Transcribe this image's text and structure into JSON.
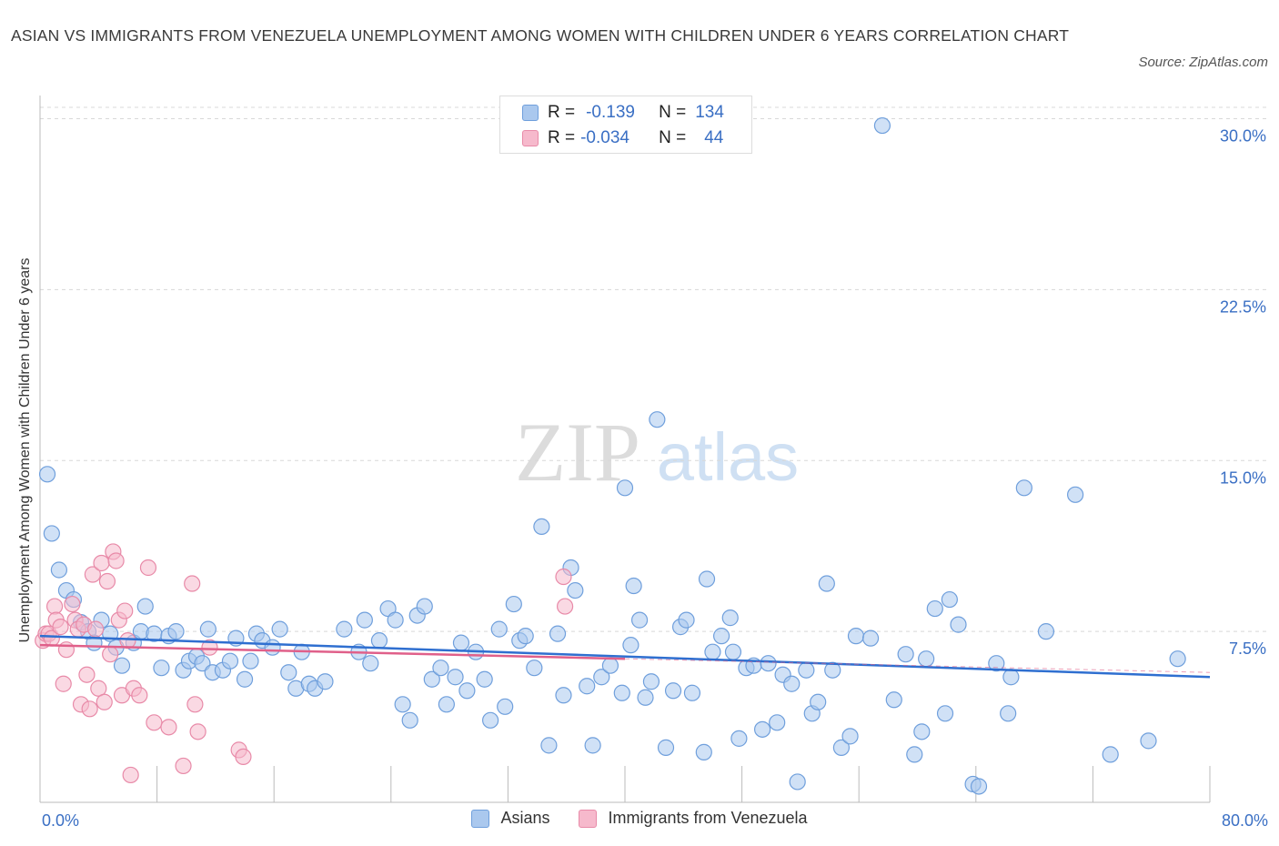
{
  "header": {
    "title": "ASIAN VS IMMIGRANTS FROM VENEZUELA UNEMPLOYMENT AMONG WOMEN WITH CHILDREN UNDER 6 YEARS CORRELATION CHART",
    "source": "Source: ZipAtlas.com"
  },
  "legend": {
    "asians": {
      "r_label": "R =",
      "r_value": "-0.139",
      "n_label": "N =",
      "n_value": "134"
    },
    "venezuela": {
      "r_label": "R =",
      "r_value": "-0.034",
      "n_label": "N =",
      "n_value": "44"
    },
    "bottom_asians": "Asians",
    "bottom_venezuela": "Immigrants from Venezuela"
  },
  "colors": {
    "asians_fill": "#aac8ee",
    "asians_stroke": "#6f9fdc",
    "asians_line": "#2f6fd0",
    "venezuela_fill": "#f6b9cc",
    "venezuela_stroke": "#e88aa8",
    "venezuela_line": "#e0608a",
    "tick_text": "#3a6fc4",
    "grid": "#d8d8d8"
  },
  "watermark": {
    "zip": "ZIP",
    "atlas": "atlas"
  },
  "chart_data": {
    "type": "scatter",
    "title": "ASIAN VS IMMIGRANTS FROM VENEZUELA UNEMPLOYMENT AMONG WOMEN WITH CHILDREN UNDER 6 YEARS CORRELATION CHART",
    "xlabel": "",
    "ylabel": "Unemployment Among Women with Children Under 6 years",
    "xlim": [
      0,
      80
    ],
    "ylim": [
      0,
      30.5
    ],
    "x_tick_labels": [
      "0.0%",
      "80.0%"
    ],
    "y_ticks": [
      7.5,
      15.0,
      22.5,
      30.0
    ],
    "y_tick_labels": [
      "7.5%",
      "15.0%",
      "22.5%",
      "30.0%"
    ],
    "grid": true,
    "legend_position": "top-center",
    "series": [
      {
        "name": "Asians",
        "r": -0.139,
        "n": 134,
        "trend": {
          "x": [
            0,
            80
          ],
          "y": [
            7.3,
            5.5
          ]
        },
        "points": [
          [
            0.5,
            14.4
          ],
          [
            0.8,
            11.8
          ],
          [
            1.3,
            10.2
          ],
          [
            1.8,
            9.3
          ],
          [
            2.3,
            8.9
          ],
          [
            2.8,
            7.9
          ],
          [
            3.3,
            7.5
          ],
          [
            3.7,
            7.0
          ],
          [
            4.2,
            8.0
          ],
          [
            4.8,
            7.4
          ],
          [
            5.2,
            6.8
          ],
          [
            5.6,
            6.0
          ],
          [
            6.4,
            7.0
          ],
          [
            6.9,
            7.5
          ],
          [
            7.2,
            8.6
          ],
          [
            7.8,
            7.4
          ],
          [
            8.3,
            5.9
          ],
          [
            8.8,
            7.3
          ],
          [
            9.3,
            7.5
          ],
          [
            9.8,
            5.8
          ],
          [
            10.2,
            6.2
          ],
          [
            10.7,
            6.4
          ],
          [
            11.1,
            6.1
          ],
          [
            11.5,
            7.6
          ],
          [
            11.8,
            5.7
          ],
          [
            12.5,
            5.8
          ],
          [
            13.0,
            6.2
          ],
          [
            13.4,
            7.2
          ],
          [
            14.0,
            5.4
          ],
          [
            14.4,
            6.2
          ],
          [
            14.8,
            7.4
          ],
          [
            15.2,
            7.1
          ],
          [
            15.9,
            6.8
          ],
          [
            16.4,
            7.6
          ],
          [
            17.0,
            5.7
          ],
          [
            17.5,
            5.0
          ],
          [
            17.9,
            6.6
          ],
          [
            18.4,
            5.2
          ],
          [
            18.8,
            5.0
          ],
          [
            19.5,
            5.3
          ],
          [
            20.8,
            7.6
          ],
          [
            21.8,
            6.6
          ],
          [
            22.2,
            8.0
          ],
          [
            22.6,
            6.1
          ],
          [
            23.2,
            7.1
          ],
          [
            23.8,
            8.5
          ],
          [
            24.3,
            8.0
          ],
          [
            24.8,
            4.3
          ],
          [
            25.3,
            3.6
          ],
          [
            25.8,
            8.2
          ],
          [
            26.3,
            8.6
          ],
          [
            26.8,
            5.4
          ],
          [
            27.4,
            5.9
          ],
          [
            27.8,
            4.3
          ],
          [
            28.4,
            5.5
          ],
          [
            28.8,
            7.0
          ],
          [
            29.2,
            4.9
          ],
          [
            29.8,
            6.6
          ],
          [
            30.4,
            5.4
          ],
          [
            30.8,
            3.6
          ],
          [
            31.4,
            7.6
          ],
          [
            31.8,
            4.2
          ],
          [
            32.4,
            8.7
          ],
          [
            32.8,
            7.1
          ],
          [
            33.2,
            7.3
          ],
          [
            33.8,
            5.9
          ],
          [
            34.3,
            12.1
          ],
          [
            34.8,
            2.5
          ],
          [
            35.4,
            7.4
          ],
          [
            35.8,
            4.7
          ],
          [
            36.3,
            10.3
          ],
          [
            36.6,
            9.3
          ],
          [
            37.4,
            5.1
          ],
          [
            37.8,
            2.5
          ],
          [
            38.4,
            5.5
          ],
          [
            39.0,
            6.0
          ],
          [
            39.8,
            4.8
          ],
          [
            40.0,
            13.8
          ],
          [
            40.4,
            6.9
          ],
          [
            41.0,
            8.0
          ],
          [
            41.4,
            4.6
          ],
          [
            41.8,
            5.3
          ],
          [
            42.2,
            16.8
          ],
          [
            42.8,
            2.4
          ],
          [
            43.3,
            4.9
          ],
          [
            43.8,
            7.7
          ],
          [
            44.2,
            8.0
          ],
          [
            44.6,
            4.8
          ],
          [
            45.4,
            2.2
          ],
          [
            46.0,
            6.6
          ],
          [
            46.6,
            7.3
          ],
          [
            47.2,
            8.1
          ],
          [
            47.4,
            6.6
          ],
          [
            47.8,
            2.8
          ],
          [
            48.3,
            5.9
          ],
          [
            48.8,
            6.0
          ],
          [
            49.4,
            3.2
          ],
          [
            49.8,
            6.1
          ],
          [
            50.4,
            3.5
          ],
          [
            50.8,
            5.6
          ],
          [
            51.4,
            5.2
          ],
          [
            51.8,
            0.9
          ],
          [
            52.4,
            5.8
          ],
          [
            52.8,
            3.9
          ],
          [
            53.2,
            4.4
          ],
          [
            53.8,
            9.6
          ],
          [
            54.2,
            5.8
          ],
          [
            54.8,
            2.4
          ],
          [
            55.4,
            2.9
          ],
          [
            55.8,
            7.3
          ],
          [
            56.8,
            7.2
          ],
          [
            57.6,
            29.7
          ],
          [
            58.4,
            4.5
          ],
          [
            59.2,
            6.5
          ],
          [
            59.8,
            2.1
          ],
          [
            60.3,
            3.1
          ],
          [
            60.6,
            6.3
          ],
          [
            61.2,
            8.5
          ],
          [
            61.9,
            3.9
          ],
          [
            62.2,
            8.9
          ],
          [
            62.8,
            7.8
          ],
          [
            63.8,
            0.8
          ],
          [
            64.2,
            0.7
          ],
          [
            65.4,
            6.1
          ],
          [
            66.2,
            3.9
          ],
          [
            66.4,
            5.5
          ],
          [
            67.3,
            13.8
          ],
          [
            68.8,
            7.5
          ],
          [
            70.8,
            13.5
          ],
          [
            73.2,
            2.1
          ],
          [
            75.8,
            2.7
          ],
          [
            77.8,
            6.3
          ],
          [
            40.6,
            9.5
          ],
          [
            45.6,
            9.8
          ]
        ]
      },
      {
        "name": "Immigrants from Venezuela",
        "r": -0.034,
        "n": 44,
        "trend": {
          "x": [
            0,
            40
          ],
          "y": [
            6.9,
            6.3
          ]
        },
        "points": [
          [
            0.2,
            7.1
          ],
          [
            0.4,
            7.4
          ],
          [
            0.6,
            7.4
          ],
          [
            0.8,
            7.2
          ],
          [
            1.0,
            8.6
          ],
          [
            1.1,
            8.0
          ],
          [
            1.4,
            7.7
          ],
          [
            1.6,
            5.2
          ],
          [
            1.8,
            6.7
          ],
          [
            2.2,
            8.7
          ],
          [
            2.4,
            8.0
          ],
          [
            2.6,
            7.6
          ],
          [
            2.8,
            4.3
          ],
          [
            3.0,
            7.8
          ],
          [
            3.2,
            5.6
          ],
          [
            3.4,
            4.1
          ],
          [
            3.6,
            10.0
          ],
          [
            3.8,
            7.6
          ],
          [
            4.0,
            5.0
          ],
          [
            4.2,
            10.5
          ],
          [
            4.4,
            4.4
          ],
          [
            4.6,
            9.7
          ],
          [
            4.8,
            6.5
          ],
          [
            5.0,
            11.0
          ],
          [
            5.2,
            10.6
          ],
          [
            5.4,
            8.0
          ],
          [
            5.6,
            4.7
          ],
          [
            5.8,
            8.4
          ],
          [
            6.0,
            7.1
          ],
          [
            6.2,
            1.2
          ],
          [
            6.4,
            5.0
          ],
          [
            6.8,
            4.7
          ],
          [
            7.4,
            10.3
          ],
          [
            7.8,
            3.5
          ],
          [
            8.8,
            3.3
          ],
          [
            9.8,
            1.6
          ],
          [
            10.4,
            9.6
          ],
          [
            10.6,
            4.3
          ],
          [
            10.8,
            3.1
          ],
          [
            11.6,
            6.8
          ],
          [
            13.6,
            2.3
          ],
          [
            13.9,
            2.0
          ],
          [
            35.8,
            9.9
          ],
          [
            35.9,
            8.6
          ]
        ]
      }
    ]
  }
}
